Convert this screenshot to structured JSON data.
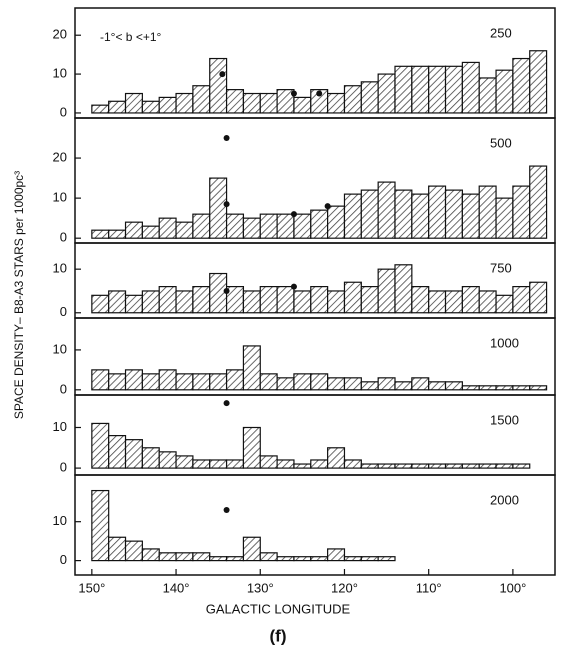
{
  "ylabel": "SPACE DENSITY–  B8-A3 STARS per 1000pc³",
  "xlabel": "GALACTIC  LONGITUDE",
  "caption": "(f)",
  "chart_data": [
    {
      "type": "histogram",
      "label": "250",
      "annotation": "-1°< b <+1°",
      "bins": [
        150,
        148,
        146,
        144,
        142,
        140,
        138,
        136,
        134,
        132,
        130,
        128,
        126,
        124,
        122,
        120,
        118,
        116,
        114,
        112,
        110,
        108,
        106,
        104,
        102,
        100,
        98,
        96
      ],
      "values": [
        2,
        3,
        5,
        3,
        4,
        5,
        7,
        14,
        6,
        5,
        5,
        6,
        4,
        6,
        5,
        7,
        8,
        10,
        12,
        12,
        12,
        12,
        13,
        9,
        11,
        14,
        16
      ],
      "points": {
        "x": [
          134.5,
          126,
          123
        ],
        "y": [
          10,
          5,
          5
        ]
      },
      "xlim": [
        152,
        95
      ],
      "ylim": [
        -1.3,
        27
      ],
      "yticks": [
        0,
        10,
        20
      ],
      "color": "#555"
    },
    {
      "type": "histogram",
      "label": "500",
      "bins": [
        150,
        148,
        146,
        144,
        142,
        140,
        138,
        136,
        134,
        132,
        130,
        128,
        126,
        124,
        122,
        120,
        118,
        116,
        114,
        112,
        110,
        108,
        106,
        104,
        102,
        100,
        98,
        96
      ],
      "values": [
        2,
        2,
        4,
        3,
        5,
        4,
        6,
        15,
        6,
        5,
        6,
        6,
        6,
        7,
        8,
        11,
        12,
        14,
        12,
        11,
        13,
        12,
        11,
        13,
        10,
        13,
        18
      ],
      "points": {
        "x": [
          134,
          134,
          126,
          122
        ],
        "y": [
          25,
          8.5,
          6,
          8
        ]
      },
      "xlim": [
        152,
        95
      ],
      "ylim": [
        -1.2,
        30
      ],
      "yticks": [
        0,
        10,
        20
      ],
      "color": "#555"
    },
    {
      "type": "histogram",
      "label": "750",
      "bins": [
        150,
        148,
        146,
        144,
        142,
        140,
        138,
        136,
        134,
        132,
        130,
        128,
        126,
        124,
        122,
        120,
        118,
        116,
        114,
        112,
        110,
        108,
        106,
        104,
        102,
        100,
        98,
        96
      ],
      "values": [
        4,
        5,
        4,
        5,
        6,
        5,
        6,
        9,
        6,
        5,
        6,
        6,
        5,
        6,
        5,
        7,
        6,
        10,
        11,
        6,
        5,
        5,
        6,
        5,
        4,
        6,
        7
      ],
      "points": {
        "x": [
          134,
          126
        ],
        "y": [
          5,
          6
        ]
      },
      "xlim": [
        152,
        95
      ],
      "ylim": [
        -1.2,
        16
      ],
      "yticks": [
        0,
        10
      ],
      "color": "#555"
    },
    {
      "type": "histogram",
      "label": "1000",
      "bins": [
        150,
        148,
        146,
        144,
        142,
        140,
        138,
        136,
        134,
        132,
        130,
        128,
        126,
        124,
        122,
        120,
        118,
        116,
        114,
        112,
        110,
        108,
        106,
        104,
        102,
        100,
        98,
        96
      ],
      "values": [
        5,
        4,
        5,
        4,
        5,
        4,
        4,
        4,
        5,
        11,
        4,
        3,
        4,
        4,
        3,
        3,
        2,
        3,
        2,
        3,
        2,
        2,
        1,
        1,
        1,
        1,
        1
      ],
      "xlim": [
        152,
        95
      ],
      "ylim": [
        -1.3,
        18
      ],
      "yticks": [
        0,
        10
      ],
      "color": "#555"
    },
    {
      "type": "histogram",
      "label": "1500",
      "bins": [
        150,
        148,
        146,
        144,
        142,
        140,
        138,
        136,
        134,
        132,
        130,
        128,
        126,
        124,
        122,
        120,
        118,
        116,
        114,
        112,
        110,
        108,
        106,
        104,
        102,
        100,
        98,
        96
      ],
      "values": [
        11,
        8,
        7,
        5,
        4,
        3,
        2,
        2,
        2,
        10,
        3,
        2,
        1,
        2,
        5,
        2,
        1,
        1,
        1,
        1,
        1,
        1,
        1,
        1,
        1,
        1,
        0
      ],
      "points": {
        "x": [
          134
        ],
        "y": [
          16
        ]
      },
      "xlim": [
        152,
        95
      ],
      "ylim": [
        -1.7,
        18
      ],
      "yticks": [
        0,
        10
      ],
      "color": "#555"
    },
    {
      "type": "histogram",
      "label": "2000",
      "bins": [
        150,
        148,
        146,
        144,
        142,
        140,
        138,
        136,
        134,
        132,
        130,
        128,
        126,
        124,
        122,
        120,
        118,
        116,
        114,
        112,
        110,
        108,
        106,
        104,
        102,
        100,
        98,
        96
      ],
      "values": [
        18,
        6,
        5,
        3,
        2,
        2,
        2,
        1,
        1,
        6,
        2,
        1,
        1,
        1,
        3,
        1,
        1,
        1,
        0,
        0,
        0,
        0,
        0,
        0,
        0,
        0,
        0
      ],
      "points": {
        "x": [
          134
        ],
        "y": [
          13
        ]
      },
      "xlim": [
        152,
        95
      ],
      "ylim": [
        -3.7,
        22
      ],
      "yticks": [
        0,
        10
      ],
      "xticks": [
        {
          "value": 150,
          "label": "150°"
        },
        {
          "value": 140,
          "label": "140°"
        },
        {
          "value": 130,
          "label": "130°"
        },
        {
          "value": 120,
          "label": "120°"
        },
        {
          "value": 110,
          "label": "110°"
        },
        {
          "value": 100,
          "label": "100°"
        }
      ],
      "color": "#555"
    }
  ]
}
